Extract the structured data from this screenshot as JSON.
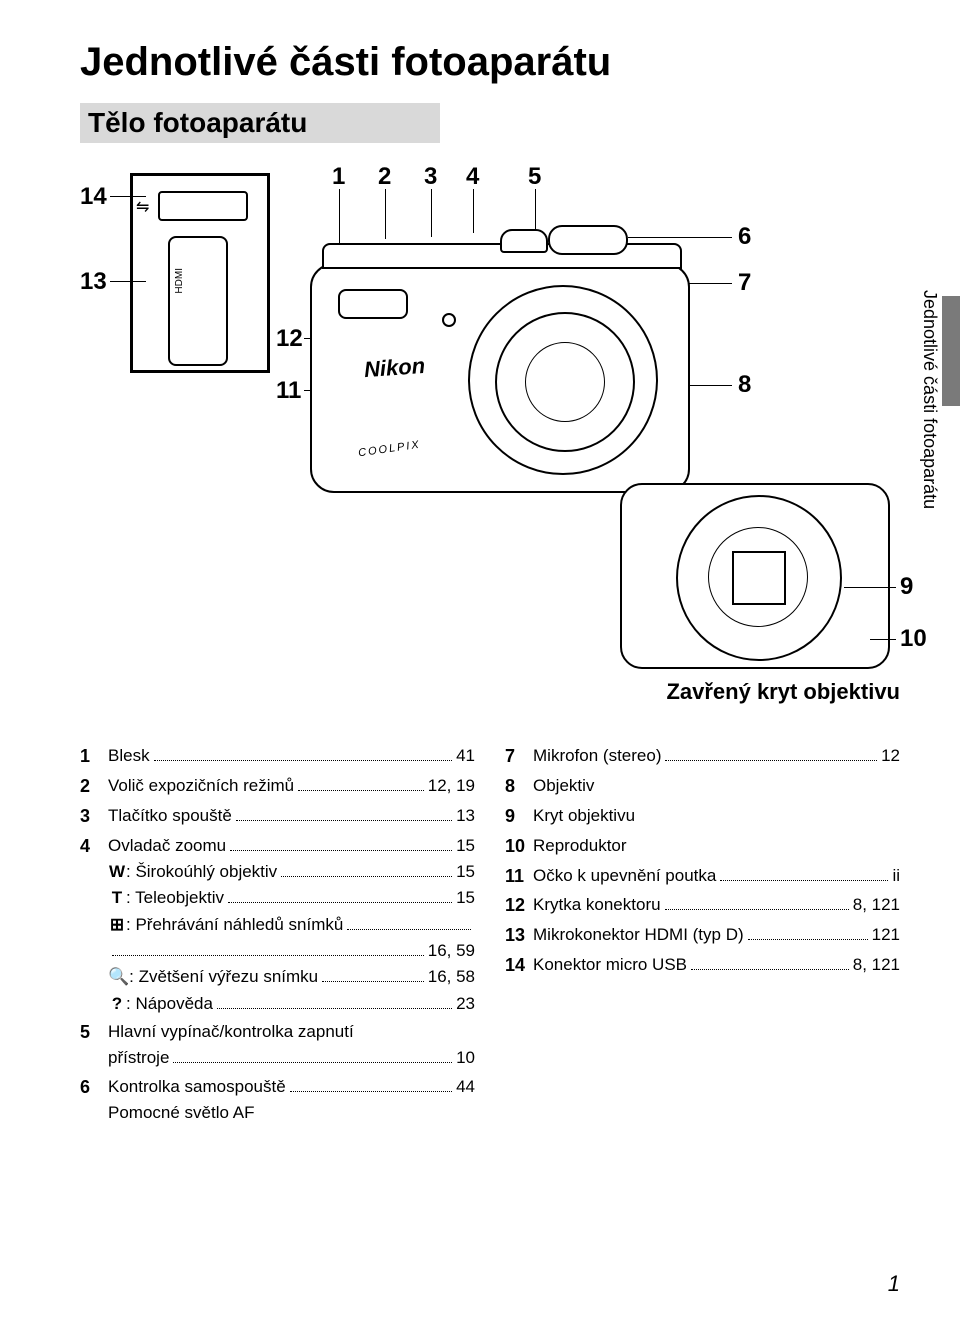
{
  "title": "Jednotlivé části fotoaparátu",
  "subtitle": "Tělo fotoaparátu",
  "side_label": "Jednotlivé části fotoaparátu",
  "closed_caption": "Zavřený kryt objektivu",
  "brand": "Nikon",
  "series": "COOLPIX",
  "callouts": {
    "n1": "1",
    "n2": "2",
    "n3": "3",
    "n4": "4",
    "n5": "5",
    "n6": "6",
    "n7": "7",
    "n8": "8",
    "n9": "9",
    "n10": "10",
    "n11": "11",
    "n12": "12",
    "n13": "13",
    "n14": "14"
  },
  "left_col": [
    {
      "num": "1",
      "lines": [
        {
          "label": "Blesk",
          "page": "41"
        }
      ]
    },
    {
      "num": "2",
      "lines": [
        {
          "label": "Volič expozičních režimů",
          "page": "12, 19"
        }
      ]
    },
    {
      "num": "3",
      "lines": [
        {
          "label": "Tlačítko spouště",
          "page": "13"
        }
      ]
    },
    {
      "num": "4",
      "lines": [
        {
          "label": "Ovladač zoomu",
          "page": "15"
        },
        {
          "sym": "W",
          "label": ": Širokoúhlý objektiv",
          "page": "15"
        },
        {
          "sym": "T",
          "label": ": Teleobjektiv",
          "page": "15"
        },
        {
          "sym": "⊞",
          "label": ": Přehrávání náhledů snímků",
          "page": ""
        },
        {
          "label": "",
          "page": "16, 59"
        },
        {
          "sym": "🔍",
          "label": ": Zvětšení výřezu snímku",
          "page": "16, 58"
        },
        {
          "sym": "?",
          "label": ": Nápověda",
          "page": "23"
        }
      ]
    },
    {
      "num": "5",
      "lines": [
        {
          "label": "Hlavní vypínač/kontrolka zapnutí",
          "nopagebreak": true
        },
        {
          "label": "přístroje",
          "page": "10"
        }
      ]
    },
    {
      "num": "6",
      "lines": [
        {
          "label": "Kontrolka samospouště",
          "page": "44"
        },
        {
          "label": "Pomocné světlo AF",
          "nopage": true
        }
      ]
    }
  ],
  "right_col": [
    {
      "num": "7",
      "lines": [
        {
          "label": "Mikrofon (stereo)",
          "page": "12"
        }
      ]
    },
    {
      "num": "8",
      "lines": [
        {
          "label": "Objektiv",
          "nopage": true
        }
      ]
    },
    {
      "num": "9",
      "lines": [
        {
          "label": "Kryt objektivu",
          "nopage": true
        }
      ]
    },
    {
      "num": "10",
      "lines": [
        {
          "label": "Reproduktor",
          "nopage": true
        }
      ]
    },
    {
      "num": "11",
      "lines": [
        {
          "label": "Očko k upevnění poutka",
          "page": "ii"
        }
      ]
    },
    {
      "num": "12",
      "lines": [
        {
          "label": "Krytka konektoru",
          "page": "8, 121"
        }
      ]
    },
    {
      "num": "13",
      "lines": [
        {
          "label": "Mikrokonektor HDMI (typ D)",
          "page": "121"
        }
      ]
    },
    {
      "num": "14",
      "lines": [
        {
          "label": "Konektor micro USB",
          "page": "8, 121"
        }
      ]
    }
  ],
  "page_number": "1"
}
